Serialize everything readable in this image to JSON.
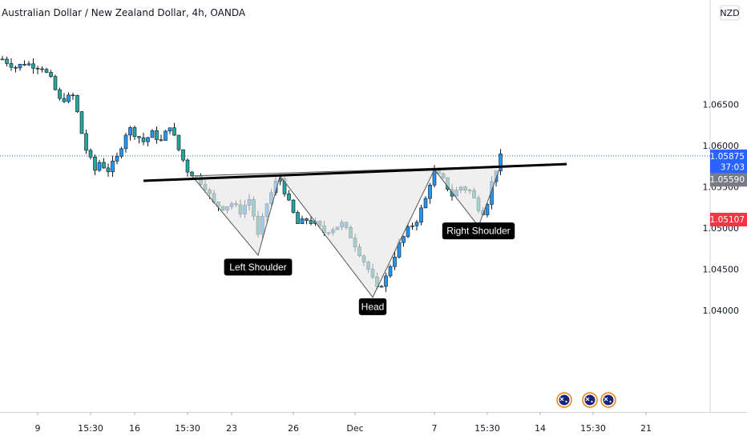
{
  "header": {
    "title": "Australian Dollar / New Zealand Dollar, 4h, OANDA",
    "currency": "NZD"
  },
  "colors": {
    "up": "#2196f3",
    "down": "#26a69a",
    "wick": "#131722",
    "last_price": "#2962ff",
    "low_tag": "#f23645",
    "neckline_tag": "#787b86",
    "neckline": "#000000",
    "pattern_fill": "#e6e6e6"
  },
  "chart_data": {
    "type": "candlestick",
    "title": "Australian Dollar / New Zealand Dollar, 4h, OANDA",
    "ylim": [
      1.0375,
      1.0705
    ],
    "y_ticks": [
      "1.06500",
      "1.06000",
      "1.05500",
      "1.05000",
      "1.04500",
      "1.04000"
    ],
    "x_ticks": [
      "9",
      "15:30",
      "16",
      "15:30",
      "23",
      "26",
      "Dec",
      "7",
      "15:30",
      "14",
      "15:30",
      "21"
    ],
    "x_tick_index": [
      8,
      20,
      30,
      42,
      52,
      66,
      80,
      98,
      110,
      122,
      134,
      146
    ],
    "neckline": {
      "start": [
        32,
        1.05573
      ],
      "end": [
        128,
        1.05776
      ]
    },
    "pattern": [
      [
        43,
        1.05633
      ],
      [
        58,
        1.0467
      ],
      [
        63,
        1.05633
      ],
      [
        84,
        1.0416
      ],
      [
        98,
        1.0571
      ],
      [
        108,
        1.0502
      ],
      [
        113,
        1.0575
      ]
    ],
    "annotations": [
      {
        "text": "Left Shoulder",
        "index": 58,
        "price": 1.0453
      },
      {
        "text": "Head",
        "index": 84,
        "price": 1.0405
      },
      {
        "text": "Right Shoulder",
        "index": 108,
        "price": 1.0497
      }
    ],
    "price_tags": [
      {
        "text": "1.05875",
        "price": 1.05875,
        "kind": "last"
      },
      {
        "text": "37:03",
        "price": 1.05745,
        "kind": "countdown"
      },
      {
        "text": "1.05590",
        "price": 1.0559,
        "kind": "neckline"
      },
      {
        "text": "1.05107",
        "price": 1.05107,
        "kind": "low"
      }
    ],
    "path": [
      [
        0,
        1.0705
      ],
      [
        3,
        1.0695
      ],
      [
        5,
        1.07
      ],
      [
        9,
        1.0695
      ],
      [
        11,
        1.068
      ],
      [
        13,
        1.0655
      ],
      [
        16,
        1.066
      ],
      [
        17,
        1.064
      ],
      [
        18,
        1.0615
      ],
      [
        19,
        1.0595
      ],
      [
        21,
        1.057
      ],
      [
        22,
        1.058
      ],
      [
        24,
        1.057
      ],
      [
        26,
        1.0585
      ],
      [
        28,
        1.0615
      ],
      [
        29,
        1.062
      ],
      [
        32,
        1.0605
      ],
      [
        34,
        1.0615
      ],
      [
        36,
        1.0605
      ],
      [
        38,
        1.0625
      ],
      [
        40,
        1.0595
      ],
      [
        42,
        1.057
      ],
      [
        44,
        1.0562
      ],
      [
        46,
        1.055
      ],
      [
        48,
        1.053
      ],
      [
        50,
        1.0525
      ],
      [
        52,
        1.053
      ],
      [
        54,
        1.052
      ],
      [
        56,
        1.0535
      ],
      [
        57,
        1.0515
      ],
      [
        58,
        1.049
      ],
      [
        60,
        1.053
      ],
      [
        62,
        1.0555
      ],
      [
        63,
        1.056
      ],
      [
        65,
        1.053
      ],
      [
        67,
        1.0505
      ],
      [
        69,
        1.051
      ],
      [
        71,
        1.0505
      ],
      [
        73,
        1.0495
      ],
      [
        75,
        1.05
      ],
      [
        77,
        1.0505
      ],
      [
        79,
        1.049
      ],
      [
        81,
        1.047
      ],
      [
        83,
        1.045
      ],
      [
        85,
        1.0425
      ],
      [
        87,
        1.044
      ],
      [
        88,
        1.0455
      ],
      [
        90,
        1.048
      ],
      [
        92,
        1.0498
      ],
      [
        94,
        1.051
      ],
      [
        96,
        1.0535
      ],
      [
        97,
        1.0555
      ],
      [
        98,
        1.0568
      ],
      [
        100,
        1.0558
      ],
      [
        102,
        1.054
      ],
      [
        104,
        1.055
      ],
      [
        106,
        1.0545
      ],
      [
        108,
        1.0525
      ],
      [
        109,
        1.052
      ],
      [
        110,
        1.0532
      ],
      [
        111,
        1.0555
      ],
      [
        112,
        1.0572
      ],
      [
        113,
        1.0586
      ]
    ]
  },
  "bottom_events": [
    "calendar-event",
    "calendar-event",
    "calendar-event"
  ]
}
